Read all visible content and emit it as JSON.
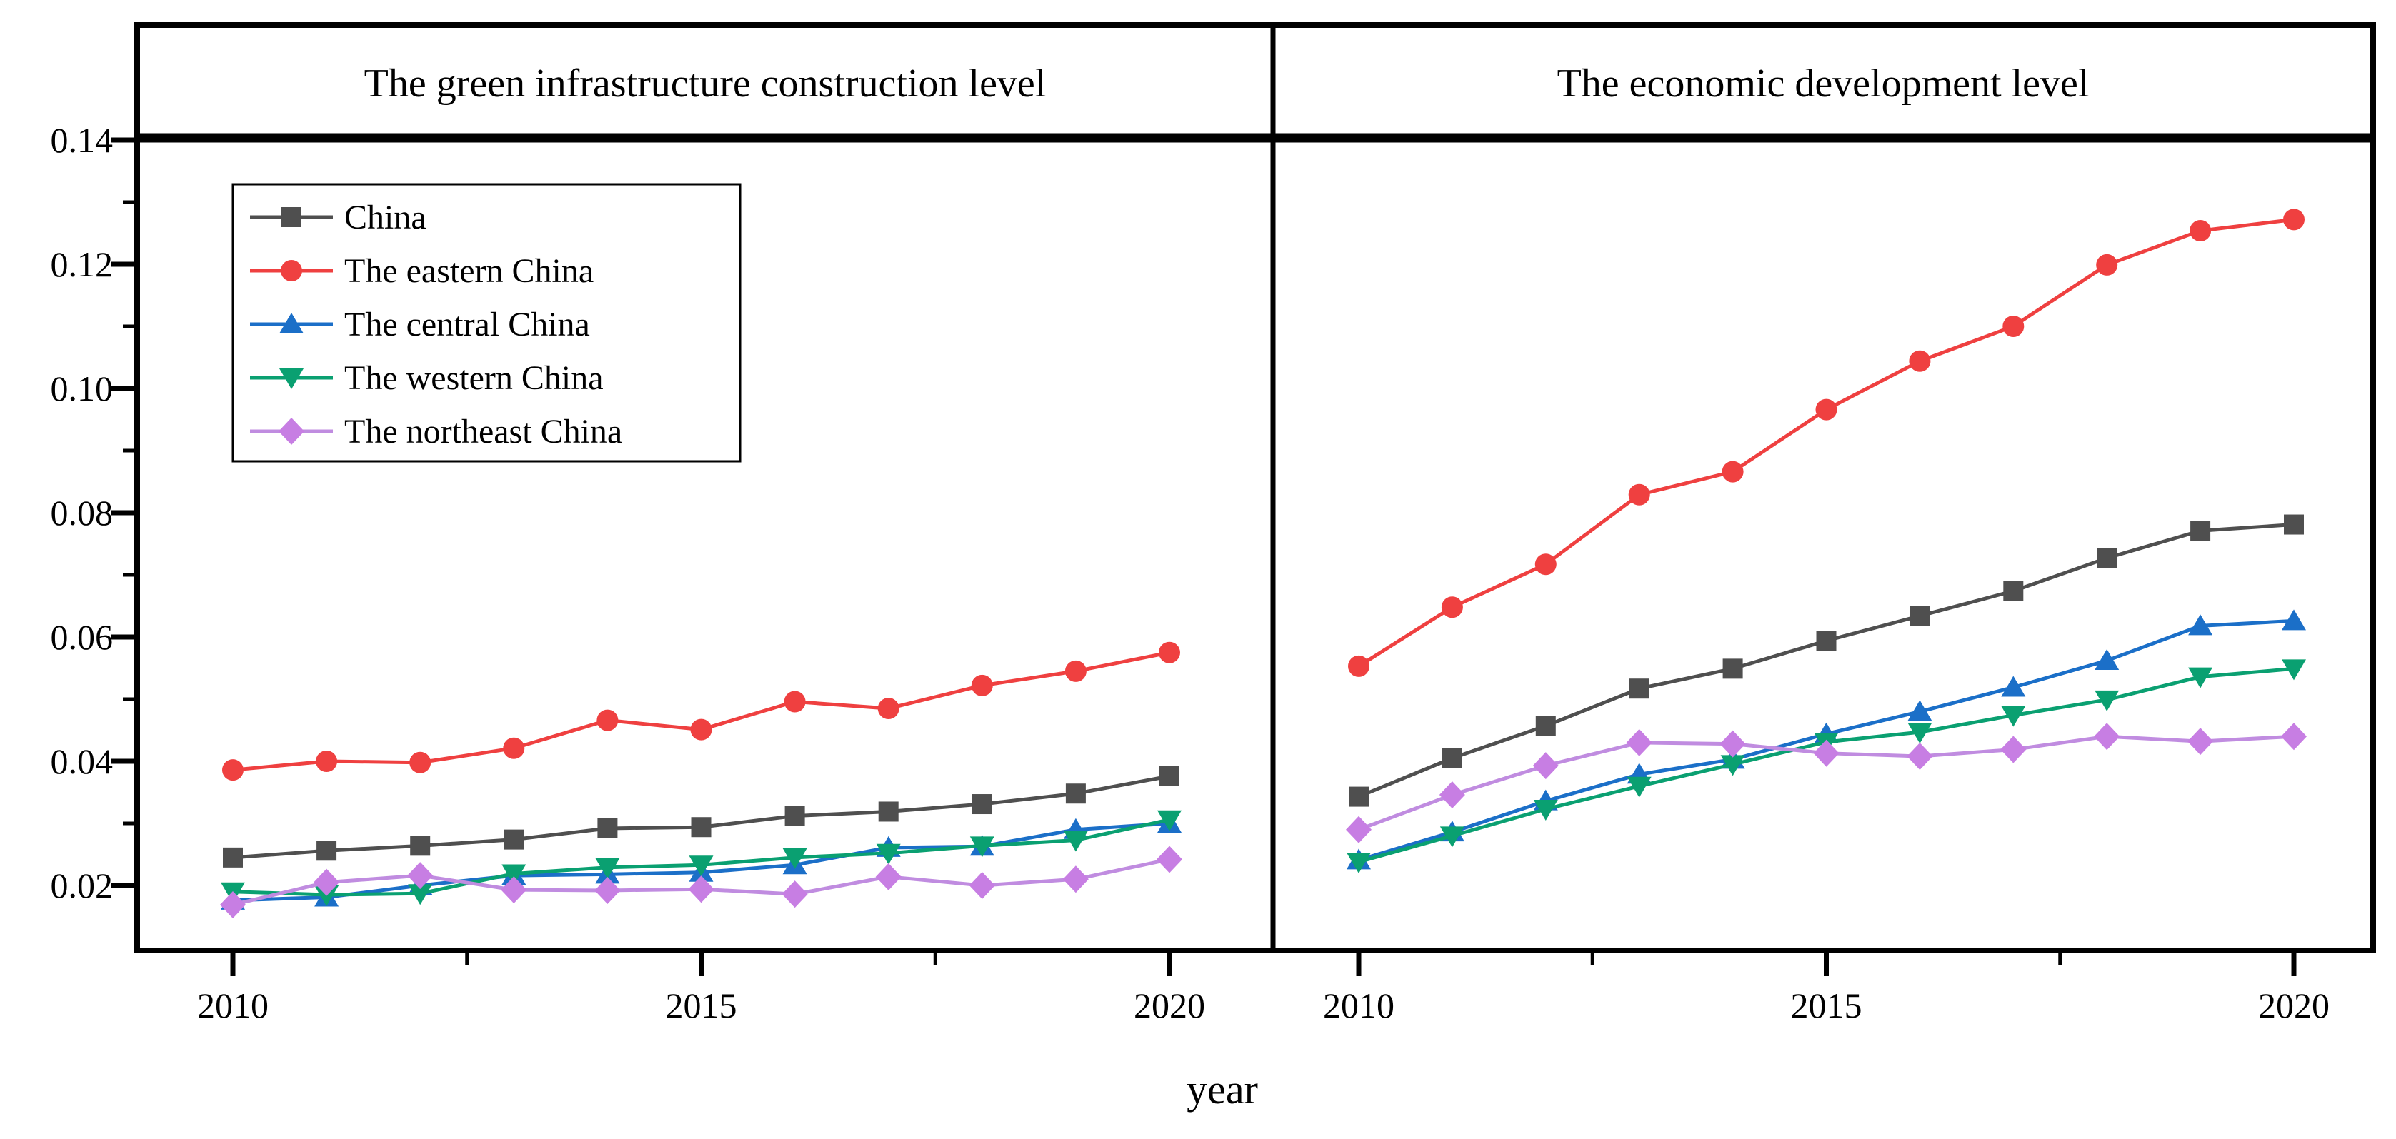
{
  "figure": {
    "xlabel": "year",
    "background": "#ffffff",
    "y_tick_labels": [
      "0.02",
      "0.04",
      "0.06",
      "0.08",
      "0.10",
      "0.12",
      "0.14"
    ],
    "x_tick_labels": [
      "2010",
      "2015",
      "2020"
    ]
  },
  "legend": {
    "position": "top-left-of-first-panel",
    "entries": [
      {
        "label": "China",
        "marker": "square"
      },
      {
        "label": "The eastern China",
        "marker": "circle"
      },
      {
        "label": "The central China",
        "marker": "triangle-up"
      },
      {
        "label": "The western China",
        "marker": "triangle-down"
      },
      {
        "label": "The northeast China",
        "marker": "diamond"
      }
    ]
  },
  "colors": {
    "china": "#4F4F4F",
    "eastern": "#EF4040",
    "central": "#1B6FC8",
    "western": "#0AA071",
    "northeast_line": "#C08CE0",
    "northeast_marker": "#C77EE3",
    "axis": "#000000"
  },
  "chart_data": [
    {
      "type": "line",
      "title": "The green infrastructure construction level",
      "xlabel": "year",
      "x": [
        2010,
        2011,
        2012,
        2013,
        2014,
        2015,
        2016,
        2017,
        2018,
        2019,
        2020
      ],
      "ylim": [
        0.0095,
        0.155
      ],
      "y_ticks": [
        0.02,
        0.04,
        0.06,
        0.08,
        0.1,
        0.12,
        0.14
      ],
      "x_major_ticks": [
        2010,
        2015,
        2020
      ],
      "x_minor_ticks": [
        2012.5,
        2017.5
      ],
      "grid": false,
      "legend_position": "upper-left",
      "series": [
        {
          "name": "China",
          "marker": "square",
          "values": [
            0.0245,
            0.0256,
            0.0264,
            0.0274,
            0.0292,
            0.0294,
            0.0312,
            0.0319,
            0.0331,
            0.0348,
            0.0376
          ]
        },
        {
          "name": "The eastern China",
          "marker": "circle",
          "values": [
            0.0386,
            0.04,
            0.0398,
            0.0421,
            0.0466,
            0.0451,
            0.0496,
            0.0485,
            0.0522,
            0.0545,
            0.0575
          ]
        },
        {
          "name": "The central China",
          "marker": "triangle-up",
          "values": [
            0.0176,
            0.0181,
            0.02,
            0.0216,
            0.0218,
            0.0221,
            0.0233,
            0.0261,
            0.0263,
            0.029,
            0.03
          ]
        },
        {
          "name": "The western China",
          "marker": "triangle-down",
          "values": [
            0.019,
            0.0185,
            0.0187,
            0.0219,
            0.0229,
            0.0233,
            0.0245,
            0.0252,
            0.0264,
            0.0273,
            0.0306
          ]
        },
        {
          "name": "The northeast China",
          "marker": "diamond",
          "values": [
            0.0169,
            0.0205,
            0.0216,
            0.0193,
            0.0192,
            0.0194,
            0.0186,
            0.0214,
            0.02,
            0.021,
            0.0242
          ]
        }
      ]
    },
    {
      "type": "line",
      "title": "The economic development level",
      "xlabel": "year",
      "x": [
        2010,
        2011,
        2012,
        2013,
        2014,
        2015,
        2016,
        2017,
        2018,
        2019,
        2020
      ],
      "ylim": [
        0.0095,
        0.155
      ],
      "y_ticks": [
        0.02,
        0.04,
        0.06,
        0.08,
        0.1,
        0.12,
        0.14
      ],
      "x_major_ticks": [
        2010,
        2015,
        2020
      ],
      "x_minor_ticks": [
        2012.5,
        2017.5
      ],
      "grid": false,
      "legend_position": "none",
      "series": [
        {
          "name": "China",
          "marker": "square",
          "values": [
            0.0343,
            0.0405,
            0.0457,
            0.0517,
            0.0549,
            0.0594,
            0.0634,
            0.0674,
            0.0727,
            0.0771,
            0.0781
          ]
        },
        {
          "name": "The eastern China",
          "marker": "circle",
          "values": [
            0.0553,
            0.0648,
            0.0717,
            0.0829,
            0.0866,
            0.0966,
            0.1044,
            0.11,
            0.1199,
            0.1254,
            0.1272
          ]
        },
        {
          "name": "The central China",
          "marker": "triangle-up",
          "values": [
            0.0241,
            0.0286,
            0.0336,
            0.0379,
            0.0403,
            0.0444,
            0.048,
            0.0519,
            0.0562,
            0.0618,
            0.0626
          ]
        },
        {
          "name": "The western China",
          "marker": "triangle-down",
          "values": [
            0.0238,
            0.028,
            0.0323,
            0.036,
            0.0395,
            0.0431,
            0.0447,
            0.0474,
            0.0499,
            0.0536,
            0.0549
          ]
        },
        {
          "name": "The northeast China",
          "marker": "diamond",
          "values": [
            0.029,
            0.0346,
            0.0393,
            0.043,
            0.0428,
            0.0413,
            0.0408,
            0.0419,
            0.044,
            0.0432,
            0.044
          ]
        }
      ]
    }
  ]
}
